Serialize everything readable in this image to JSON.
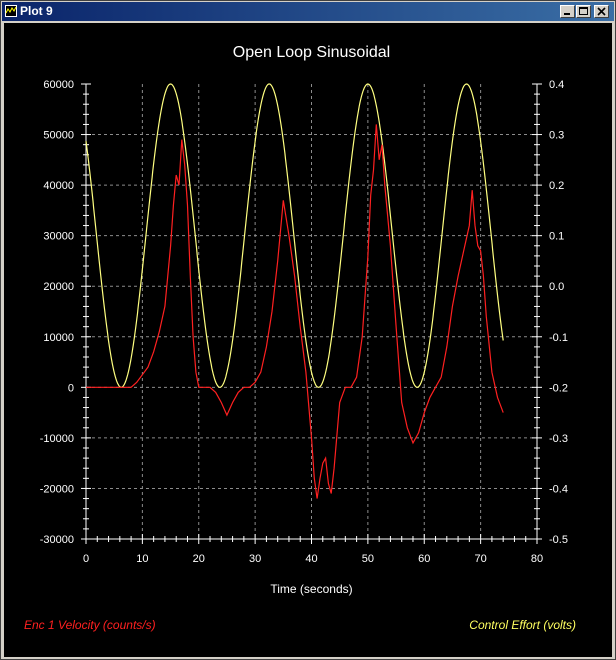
{
  "window": {
    "title": "Plot 9",
    "controls": [
      "minimize",
      "maximize",
      "close"
    ]
  },
  "colors": {
    "background": "#000000",
    "axes": "#ffffff",
    "grid": "#8c8c8c",
    "velocity": "#ff2020",
    "effort": "#ffff80",
    "velocity_label": "#ff2020",
    "effort_label": "#ffff60"
  },
  "chart_data": {
    "type": "line",
    "title": "Open Loop Sinusoidal",
    "xlabel": "Time (seconds)",
    "xlim": [
      0,
      80
    ],
    "x_ticks": [
      0,
      10,
      20,
      30,
      40,
      50,
      60,
      70,
      80
    ],
    "grid": true,
    "legend_placement": "bottom",
    "y_left": {
      "lim": [
        -30000,
        60000
      ],
      "ticks": [
        -30000,
        -20000,
        -10000,
        0,
        10000,
        20000,
        30000,
        40000,
        50000,
        60000
      ],
      "label": "Enc 1 Velocity (counts/s)"
    },
    "y_right": {
      "lim": [
        -0.5,
        0.4
      ],
      "ticks": [
        "-0.5",
        "-0.4",
        "-0.3",
        "-0.2",
        "-0.1",
        "0.0",
        "0.1",
        "0.2",
        "0.3",
        "0.4"
      ],
      "label": "Control Effort (volts)"
    },
    "series": [
      {
        "name": "Enc 1 Velocity (counts/s)",
        "axis": "left",
        "x": [
          0,
          5,
          8,
          9,
          10,
          11,
          12,
          13,
          14,
          15,
          15.5,
          16,
          16.5,
          17,
          17.5,
          18,
          18.5,
          19,
          19.5,
          20,
          21,
          22,
          23,
          24,
          25,
          26,
          27,
          28,
          29,
          30,
          31,
          32,
          33,
          34,
          35,
          36,
          37,
          38,
          39,
          40,
          40.5,
          41,
          41.5,
          42,
          42.5,
          43,
          43.5,
          44,
          45,
          46,
          47,
          48,
          49,
          50,
          50.5,
          51,
          51.5,
          52,
          52.5,
          53,
          54,
          55,
          56,
          57,
          58,
          59,
          60,
          61,
          62,
          63,
          64,
          65,
          66,
          67,
          68,
          68.5,
          69,
          69.5,
          70,
          70.5,
          71,
          72,
          73,
          74
        ],
        "values": [
          0,
          0,
          0,
          1000,
          2500,
          4000,
          7000,
          11000,
          16000,
          28000,
          36000,
          42000,
          40000,
          49000,
          44000,
          36000,
          22000,
          10000,
          3000,
          0,
          0,
          0,
          -1000,
          -3000,
          -5500,
          -3000,
          -1000,
          0,
          0,
          1000,
          3000,
          8000,
          15000,
          25000,
          37000,
          30000,
          22000,
          12000,
          3000,
          -10000,
          -18000,
          -22000,
          -18000,
          -15000,
          -14000,
          -19000,
          -21000,
          -16000,
          -3000,
          0,
          0,
          2000,
          10000,
          26000,
          38000,
          43000,
          52000,
          45000,
          48000,
          40000,
          28000,
          12000,
          -3000,
          -8000,
          -11000,
          -9000,
          -5000,
          -2000,
          0,
          2000,
          8000,
          16000,
          22000,
          27000,
          32000,
          39000,
          32000,
          28000,
          27000,
          22000,
          14000,
          3000,
          -2000,
          -5000
        ]
      },
      {
        "name": "Control Effort (volts)",
        "axis": "right",
        "function": "sine",
        "offset": 0.1,
        "amplitude": 0.3,
        "period": 17.5,
        "peak_at": 15,
        "flat_until": 0,
        "x_end": 74
      }
    ]
  }
}
